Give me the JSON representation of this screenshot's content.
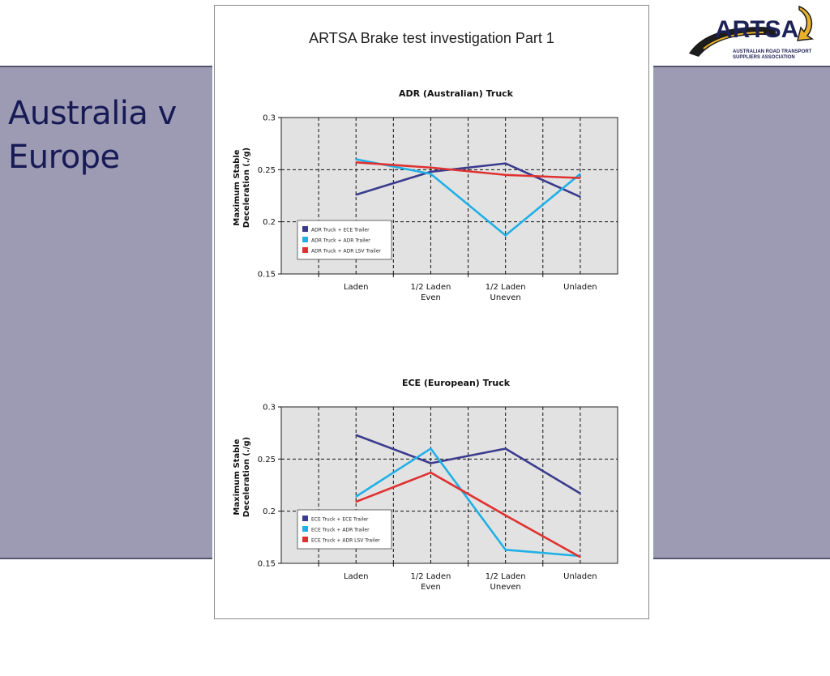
{
  "slide": {
    "title": "Australia v Europe"
  },
  "document": {
    "title": "ARTSA Brake test investigation Part 1"
  },
  "logo": {
    "name": "ARTSA",
    "line1": "AUSTRALIAN ROAD TRANSPORT",
    "line2": "SUPPLIERS ASSOCIATION"
  },
  "colors": {
    "navy": "#3b3b8f",
    "cyan": "#1fb0e6",
    "red": "#e03131",
    "band": "#9c9bb3",
    "plot_bg": "#e2e2e2"
  },
  "chart_data": [
    {
      "type": "line",
      "title": "ADR (Australian) Truck",
      "ylabel": "Maximum Stable Deceleration (./g)",
      "xlabel": "",
      "categories": [
        "Laden",
        "1/2 Laden Even",
        "1/2 Laden Uneven",
        "Unladen"
      ],
      "category_lines": [
        [
          "Laden"
        ],
        [
          "1/2 Laden",
          "Even"
        ],
        [
          "1/2 Laden",
          "Uneven"
        ],
        [
          "Unladen"
        ]
      ],
      "ylim": [
        0.15,
        0.3
      ],
      "yticks": [
        "0.15",
        "0.2",
        "0.25",
        "0.3"
      ],
      "grid": true,
      "legend_position": "bottom-left",
      "series": [
        {
          "name": "ADR Truck + ECE Trailer",
          "color": "#3b3b8f",
          "values": [
            0.226,
            0.248,
            0.256,
            0.224
          ]
        },
        {
          "name": "ADR Truck + ADR Trailer",
          "color": "#1fb0e6",
          "values": [
            0.26,
            0.246,
            0.187,
            0.246
          ]
        },
        {
          "name": "ADR Truck + ADR LSV Trailer",
          "color": "#e03131",
          "values": [
            0.257,
            0.252,
            0.245,
            0.242
          ]
        }
      ]
    },
    {
      "type": "line",
      "title": "ECE (European) Truck",
      "ylabel": "Maximum Stable Deceleration (./g)",
      "xlabel": "",
      "categories": [
        "Laden",
        "1/2 Laden Even",
        "1/2 Laden Uneven",
        "Unladen"
      ],
      "category_lines": [
        [
          "Laden"
        ],
        [
          "1/2 Laden",
          "Even"
        ],
        [
          "1/2 Laden",
          "Uneven"
        ],
        [
          "Unladen"
        ]
      ],
      "ylim": [
        0.15,
        0.3
      ],
      "yticks": [
        "0.15",
        "0.2",
        "0.25",
        "0.3"
      ],
      "grid": true,
      "legend_position": "bottom-left",
      "series": [
        {
          "name": "ECE Truck + ECE Trailer",
          "color": "#3b3b8f",
          "values": [
            0.273,
            0.246,
            0.26,
            0.217
          ]
        },
        {
          "name": "ECE Truck + ADR Trailer",
          "color": "#1fb0e6",
          "values": [
            0.214,
            0.26,
            0.163,
            0.157
          ]
        },
        {
          "name": "ECE Truck + ADR LSV Trailer",
          "color": "#e03131",
          "values": [
            0.209,
            0.237,
            0.196,
            0.156
          ]
        }
      ]
    }
  ]
}
